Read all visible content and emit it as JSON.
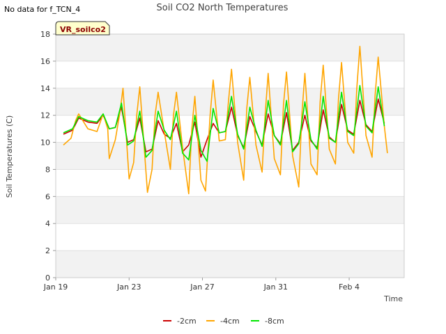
{
  "chart_data": {
    "type": "line",
    "title": "Soil CO2 North Temperatures",
    "note": "No data for f_TCN_4",
    "tag": "VR_soilco2",
    "xlabel": "Time",
    "ylabel": "Soil Temperatures (C)",
    "xlim": [
      "2019-01-19",
      "2019-02-07"
    ],
    "ylim": [
      0,
      18
    ],
    "yticks": [
      0,
      2,
      4,
      6,
      8,
      10,
      12,
      14,
      16,
      18
    ],
    "xticks": [
      {
        "date": "2019-01-19",
        "label": "Jan 19"
      },
      {
        "date": "2019-01-23",
        "label": "Jan 23"
      },
      {
        "date": "2019-01-27",
        "label": "Jan 27"
      },
      {
        "date": "2019-01-31",
        "label": "Jan 31"
      },
      {
        "date": "2019-02-04",
        "label": "Feb 4"
      }
    ],
    "grid": "horizontal bands",
    "legend": "bottom-center",
    "series": [
      {
        "name": "-2cm",
        "color": "#cc0000",
        "points": [
          [
            "2019-01-19T10:00",
            10.6
          ],
          [
            "2019-01-19T22:00",
            10.9
          ],
          [
            "2019-01-20T06:00",
            11.8
          ],
          [
            "2019-01-20T18:00",
            11.5
          ],
          [
            "2019-01-21T06:00",
            11.4
          ],
          [
            "2019-01-21T14:00",
            12.0
          ],
          [
            "2019-01-21T22:00",
            11.0
          ],
          [
            "2019-01-22T06:00",
            11.1
          ],
          [
            "2019-01-22T14:00",
            12.6
          ],
          [
            "2019-01-22T22:00",
            10.0
          ],
          [
            "2019-01-23T06:00",
            10.2
          ],
          [
            "2019-01-23T14:00",
            11.8
          ],
          [
            "2019-01-23T22:00",
            9.3
          ],
          [
            "2019-01-24T06:00",
            9.5
          ],
          [
            "2019-01-24T14:00",
            11.6
          ],
          [
            "2019-01-24T22:00",
            10.6
          ],
          [
            "2019-01-25T06:00",
            10.3
          ],
          [
            "2019-01-25T14:00",
            11.4
          ],
          [
            "2019-01-25T22:00",
            9.3
          ],
          [
            "2019-01-26T06:00",
            9.8
          ],
          [
            "2019-01-26T14:00",
            11.5
          ],
          [
            "2019-01-26T22:00",
            8.9
          ],
          [
            "2019-01-27T06:00",
            10.2
          ],
          [
            "2019-01-27T14:00",
            11.4
          ],
          [
            "2019-01-27T22:00",
            10.7
          ],
          [
            "2019-01-28T06:00",
            10.8
          ],
          [
            "2019-01-28T14:00",
            12.6
          ],
          [
            "2019-01-28T22:00",
            10.5
          ],
          [
            "2019-01-29T06:00",
            9.6
          ],
          [
            "2019-01-29T14:00",
            11.9
          ],
          [
            "2019-01-29T22:00",
            10.8
          ],
          [
            "2019-01-30T06:00",
            9.8
          ],
          [
            "2019-01-30T14:00",
            12.1
          ],
          [
            "2019-01-30T22:00",
            10.5
          ],
          [
            "2019-01-31T06:00",
            9.9
          ],
          [
            "2019-01-31T14:00",
            12.2
          ],
          [
            "2019-01-31T22:00",
            9.4
          ],
          [
            "2019-02-01T06:00",
            10.0
          ],
          [
            "2019-02-01T14:00",
            12.0
          ],
          [
            "2019-02-01T22:00",
            10.1
          ],
          [
            "2019-02-02T06:00",
            9.6
          ],
          [
            "2019-02-02T14:00",
            12.4
          ],
          [
            "2019-02-02T22:00",
            10.4
          ],
          [
            "2019-02-03T06:00",
            10.0
          ],
          [
            "2019-02-03T14:00",
            12.8
          ],
          [
            "2019-02-03T22:00",
            10.9
          ],
          [
            "2019-02-04T06:00",
            10.6
          ],
          [
            "2019-02-04T14:00",
            13.1
          ],
          [
            "2019-02-04T22:00",
            11.3
          ],
          [
            "2019-02-05T06:00",
            10.8
          ],
          [
            "2019-02-05T14:00",
            13.2
          ],
          [
            "2019-02-05T22:00",
            11.4
          ]
        ]
      },
      {
        "name": "-4cm",
        "color": "#ffa500",
        "points": [
          [
            "2019-01-19T10:00",
            9.8
          ],
          [
            "2019-01-19T20:00",
            10.3
          ],
          [
            "2019-01-20T02:00",
            11.6
          ],
          [
            "2019-01-20T06:00",
            12.1
          ],
          [
            "2019-01-20T18:00",
            11.0
          ],
          [
            "2019-01-21T06:00",
            10.8
          ],
          [
            "2019-01-21T14:00",
            12.1
          ],
          [
            "2019-01-21T20:00",
            11.0
          ],
          [
            "2019-01-21T22:00",
            8.8
          ],
          [
            "2019-01-22T06:00",
            10.2
          ],
          [
            "2019-01-22T12:00",
            12.2
          ],
          [
            "2019-01-22T16:00",
            14.0
          ],
          [
            "2019-01-23T00:00",
            7.3
          ],
          [
            "2019-01-23T06:00",
            8.5
          ],
          [
            "2019-01-23T10:00",
            12.0
          ],
          [
            "2019-01-23T14:00",
            14.1
          ],
          [
            "2019-01-24T00:00",
            6.3
          ],
          [
            "2019-01-24T06:00",
            8.0
          ],
          [
            "2019-01-24T10:00",
            12.0
          ],
          [
            "2019-01-24T14:00",
            13.7
          ],
          [
            "2019-01-24T22:00",
            10.8
          ],
          [
            "2019-01-25T06:00",
            8.0
          ],
          [
            "2019-01-25T10:00",
            12.0
          ],
          [
            "2019-01-25T14:00",
            13.7
          ],
          [
            "2019-01-25T22:00",
            9.6
          ],
          [
            "2019-01-26T06:00",
            6.2
          ],
          [
            "2019-01-26T10:00",
            11.0
          ],
          [
            "2019-01-26T14:00",
            13.4
          ],
          [
            "2019-01-26T22:00",
            7.2
          ],
          [
            "2019-01-27T04:00",
            6.4
          ],
          [
            "2019-01-27T10:00",
            12.0
          ],
          [
            "2019-01-27T14:00",
            14.6
          ],
          [
            "2019-01-27T22:00",
            10.1
          ],
          [
            "2019-01-28T06:00",
            10.2
          ],
          [
            "2019-01-28T10:00",
            13.0
          ],
          [
            "2019-01-28T14:00",
            15.4
          ],
          [
            "2019-01-28T22:00",
            10.0
          ],
          [
            "2019-01-29T06:00",
            7.2
          ],
          [
            "2019-01-29T10:00",
            12.5
          ],
          [
            "2019-01-29T14:00",
            14.8
          ],
          [
            "2019-01-29T22:00",
            9.8
          ],
          [
            "2019-01-30T06:00",
            7.8
          ],
          [
            "2019-01-30T10:00",
            12.0
          ],
          [
            "2019-01-30T14:00",
            15.1
          ],
          [
            "2019-01-30T22:00",
            8.8
          ],
          [
            "2019-01-31T06:00",
            7.6
          ],
          [
            "2019-01-31T10:00",
            12.8
          ],
          [
            "2019-01-31T14:00",
            15.2
          ],
          [
            "2019-01-31T22:00",
            9.0
          ],
          [
            "2019-02-01T06:00",
            6.7
          ],
          [
            "2019-02-01T10:00",
            12.0
          ],
          [
            "2019-02-01T14:00",
            15.1
          ],
          [
            "2019-02-01T22:00",
            8.4
          ],
          [
            "2019-02-02T06:00",
            7.6
          ],
          [
            "2019-02-02T10:00",
            13.0
          ],
          [
            "2019-02-02T14:00",
            15.7
          ],
          [
            "2019-02-02T22:00",
            9.5
          ],
          [
            "2019-02-03T06:00",
            8.4
          ],
          [
            "2019-02-03T10:00",
            13.2
          ],
          [
            "2019-02-03T14:00",
            15.9
          ],
          [
            "2019-02-03T22:00",
            10.0
          ],
          [
            "2019-02-04T06:00",
            9.2
          ],
          [
            "2019-02-04T10:00",
            14.0
          ],
          [
            "2019-02-04T14:00",
            17.1
          ],
          [
            "2019-02-04T22:00",
            10.5
          ],
          [
            "2019-02-05T06:00",
            8.9
          ],
          [
            "2019-02-05T10:00",
            13.5
          ],
          [
            "2019-02-05T14:00",
            16.3
          ],
          [
            "2019-02-05T22:00",
            11.2
          ],
          [
            "2019-02-06T02:00",
            9.2
          ]
        ]
      },
      {
        "name": "-8cm",
        "color": "#00e600",
        "points": [
          [
            "2019-01-19T10:00",
            10.7
          ],
          [
            "2019-01-19T22:00",
            11.0
          ],
          [
            "2019-01-20T06:00",
            11.9
          ],
          [
            "2019-01-20T18:00",
            11.6
          ],
          [
            "2019-01-21T06:00",
            11.5
          ],
          [
            "2019-01-21T14:00",
            12.1
          ],
          [
            "2019-01-21T22:00",
            11.0
          ],
          [
            "2019-01-22T06:00",
            11.1
          ],
          [
            "2019-01-22T14:00",
            12.9
          ],
          [
            "2019-01-22T22:00",
            9.8
          ],
          [
            "2019-01-23T06:00",
            10.1
          ],
          [
            "2019-01-23T14:00",
            12.3
          ],
          [
            "2019-01-23T22:00",
            8.9
          ],
          [
            "2019-01-24T06:00",
            9.4
          ],
          [
            "2019-01-24T14:00",
            12.3
          ],
          [
            "2019-01-24T22:00",
            10.9
          ],
          [
            "2019-01-25T06:00",
            10.2
          ],
          [
            "2019-01-25T14:00",
            12.3
          ],
          [
            "2019-01-25T22:00",
            9.2
          ],
          [
            "2019-01-26T06:00",
            8.7
          ],
          [
            "2019-01-26T14:00",
            12.0
          ],
          [
            "2019-01-26T22:00",
            9.4
          ],
          [
            "2019-01-27T06:00",
            8.6
          ],
          [
            "2019-01-27T14:00",
            12.5
          ],
          [
            "2019-01-27T22:00",
            10.7
          ],
          [
            "2019-01-28T06:00",
            10.8
          ],
          [
            "2019-01-28T14:00",
            13.4
          ],
          [
            "2019-01-28T22:00",
            10.6
          ],
          [
            "2019-01-29T06:00",
            9.5
          ],
          [
            "2019-01-29T14:00",
            12.6
          ],
          [
            "2019-01-29T22:00",
            10.9
          ],
          [
            "2019-01-30T06:00",
            9.7
          ],
          [
            "2019-01-30T14:00",
            13.1
          ],
          [
            "2019-01-30T22:00",
            10.5
          ],
          [
            "2019-01-31T06:00",
            9.8
          ],
          [
            "2019-01-31T14:00",
            13.1
          ],
          [
            "2019-01-31T22:00",
            9.3
          ],
          [
            "2019-02-01T06:00",
            9.9
          ],
          [
            "2019-02-01T14:00",
            13.0
          ],
          [
            "2019-02-01T22:00",
            10.2
          ],
          [
            "2019-02-02T06:00",
            9.5
          ],
          [
            "2019-02-02T14:00",
            13.4
          ],
          [
            "2019-02-02T22:00",
            10.3
          ],
          [
            "2019-02-03T06:00",
            10.0
          ],
          [
            "2019-02-03T14:00",
            13.7
          ],
          [
            "2019-02-03T22:00",
            10.8
          ],
          [
            "2019-02-04T06:00",
            10.5
          ],
          [
            "2019-02-04T14:00",
            14.2
          ],
          [
            "2019-02-04T22:00",
            11.2
          ],
          [
            "2019-02-05T06:00",
            10.7
          ],
          [
            "2019-02-05T14:00",
            14.1
          ],
          [
            "2019-02-05T22:00",
            11.2
          ]
        ]
      }
    ]
  }
}
